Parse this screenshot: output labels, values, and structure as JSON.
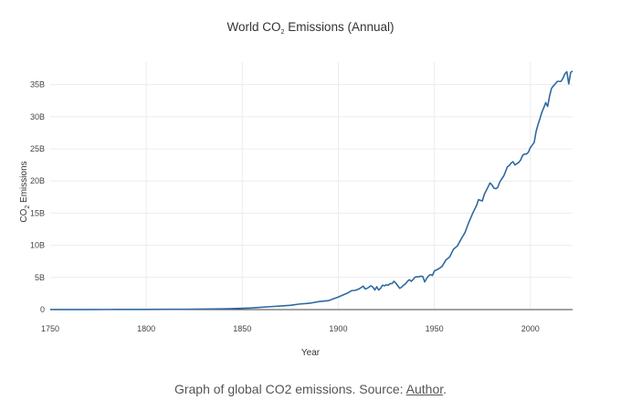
{
  "chart_data": {
    "type": "line",
    "title": {
      "prefix": "World CO",
      "subscript": "2",
      "suffix": " Emissions (Annual)"
    },
    "xlabel": "Year",
    "ylabel": {
      "prefix": "CO",
      "subscript": "2",
      "suffix": " Emissions"
    },
    "xlim": [
      1750,
      2022
    ],
    "ylim": [
      0,
      38500000000
    ],
    "x_ticks": [
      1750,
      1800,
      1850,
      1900,
      1950,
      2000
    ],
    "y_ticks": [
      0,
      5000000000,
      10000000000,
      15000000000,
      20000000000,
      25000000000,
      30000000000,
      35000000000
    ],
    "y_tick_labels": [
      "0",
      "5B",
      "10B",
      "15B",
      "20B",
      "25B",
      "30B",
      "35B"
    ],
    "grid": true,
    "line_color": "#2f6aa0",
    "series": [
      {
        "x": [
          1750,
          1760,
          1770,
          1780,
          1790,
          1800,
          1810,
          1820,
          1830,
          1840,
          1850,
          1855,
          1860,
          1865,
          1870,
          1875,
          1880,
          1885,
          1890,
          1895,
          1900,
          1903,
          1905,
          1907,
          1909,
          1911,
          1913,
          1914,
          1915,
          1916,
          1917,
          1918,
          1919,
          1920,
          1921,
          1922,
          1923,
          1924,
          1925,
          1926,
          1927,
          1928,
          1929,
          1930,
          1931,
          1932,
          1933,
          1934,
          1935,
          1936,
          1937,
          1938,
          1939,
          1940,
          1941,
          1942,
          1943,
          1944,
          1945,
          1946,
          1947,
          1948,
          1949,
          1950,
          1952,
          1954,
          1956,
          1958,
          1960,
          1962,
          1964,
          1966,
          1968,
          1970,
          1972,
          1973,
          1974,
          1975,
          1976,
          1977,
          1978,
          1979,
          1980,
          1981,
          1982,
          1983,
          1984,
          1985,
          1986,
          1987,
          1988,
          1989,
          1990,
          1991,
          1992,
          1993,
          1994,
          1995,
          1996,
          1997,
          1998,
          1999,
          2000,
          2001,
          2002,
          2003,
          2004,
          2005,
          2006,
          2007,
          2008,
          2009,
          2010,
          2011,
          2012,
          2013,
          2014,
          2015,
          2016,
          2017,
          2018,
          2019,
          2020,
          2021,
          2022
        ],
        "y": [
          9300000,
          11000000,
          15000000,
          19000000,
          25000000,
          28000000,
          38000000,
          50000000,
          75000000,
          110000000,
          197000000,
          260000000,
          370000000,
          460000000,
          560000000,
          660000000,
          870000000,
          980000000,
          1250000000,
          1400000000,
          1950000000,
          2350000000,
          2600000000,
          2950000000,
          3000000000,
          3250000000,
          3650000000,
          3200000000,
          3300000000,
          3500000000,
          3700000000,
          3500000000,
          3050000000,
          3550000000,
          3050000000,
          3300000000,
          3800000000,
          3700000000,
          3850000000,
          3800000000,
          4050000000,
          4050000000,
          4400000000,
          4100000000,
          3700000000,
          3300000000,
          3500000000,
          3800000000,
          4000000000,
          4400000000,
          4650000000,
          4400000000,
          4700000000,
          5050000000,
          5100000000,
          5100000000,
          5200000000,
          5150000000,
          4300000000,
          4850000000,
          5250000000,
          5450000000,
          5300000000,
          6000000000,
          6300000000,
          6700000000,
          7700000000,
          8200000000,
          9400000000,
          9900000000,
          11000000000,
          12000000000,
          13600000000,
          15000000000,
          16200000000,
          17100000000,
          17000000000,
          16900000000,
          17900000000,
          18500000000,
          19100000000,
          19700000000,
          19400000000,
          18900000000,
          18800000000,
          19000000000,
          19800000000,
          20300000000,
          20700000000,
          21400000000,
          22200000000,
          22400000000,
          22800000000,
          23000000000,
          22500000000,
          22700000000,
          22900000000,
          23300000000,
          24000000000,
          24200000000,
          24200000000,
          24500000000,
          25200000000,
          25600000000,
          26000000000,
          27700000000,
          28800000000,
          29700000000,
          30700000000,
          31400000000,
          32200000000,
          31600000000,
          33200000000,
          34400000000,
          34800000000,
          35100000000,
          35500000000,
          35500000000,
          35500000000,
          36000000000,
          36700000000,
          37000000000,
          35100000000,
          36900000000,
          37100000000
        ]
      }
    ]
  },
  "caption": {
    "text": "Graph of global CO2 emissions. Source: ",
    "link": "Author",
    "end": "."
  }
}
